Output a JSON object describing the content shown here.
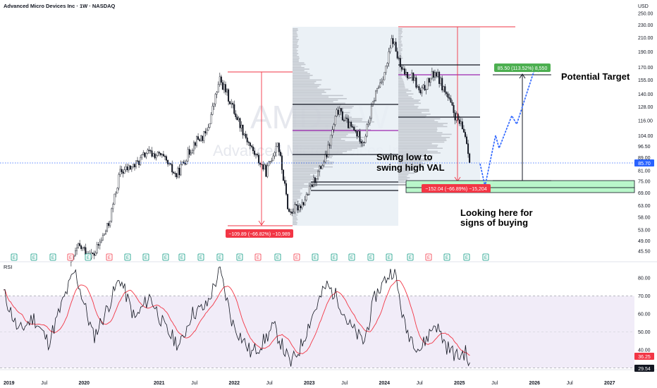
{
  "header": {
    "title": "Advanced Micro Devices Inc · 1W · NASDAQ",
    "currency": "USD",
    "watermark_ticker": "AMD, 1W",
    "watermark_name": "Advanced Micro Devices Inc"
  },
  "chart_data": [
    {
      "type": "candlestick",
      "title": "Advanced Micro Devices Inc · 1W · NASDAQ",
      "y_unit": "USD",
      "y_scale": "log",
      "y_ticks": [
        "250.00",
        "230.00",
        "210.00",
        "190.00",
        "170.00",
        "155.00",
        "140.00",
        "128.00",
        "116.00",
        "104.00",
        "96.50",
        "89.00",
        "81.00",
        "75.00",
        "69.00",
        "63.00",
        "58.00",
        "53.00",
        "49.00",
        "45.50"
      ],
      "x_ticks": [
        "2019",
        "Jul",
        "2020",
        "2021",
        "Jul",
        "2022",
        "Jul",
        "2023",
        "Jul",
        "2024",
        "Jul",
        "2025",
        "Jul",
        "2026",
        "Jul",
        "2027"
      ],
      "x_range": [
        2019.0,
        2027.3
      ],
      "approx_weekly_close_path": [
        {
          "t": 2019.9,
          "p": 42
        },
        {
          "t": 2020.0,
          "p": 47
        },
        {
          "t": 2020.2,
          "p": 44
        },
        {
          "t": 2020.4,
          "p": 55
        },
        {
          "t": 2020.55,
          "p": 80
        },
        {
          "t": 2020.75,
          "p": 84
        },
        {
          "t": 2020.9,
          "p": 92
        },
        {
          "t": 2021.1,
          "p": 90
        },
        {
          "t": 2021.3,
          "p": 78
        },
        {
          "t": 2021.55,
          "p": 100
        },
        {
          "t": 2021.7,
          "p": 105
        },
        {
          "t": 2021.88,
          "p": 155
        },
        {
          "t": 2021.95,
          "p": 145
        },
        {
          "t": 2022.1,
          "p": 120
        },
        {
          "t": 2022.3,
          "p": 95
        },
        {
          "t": 2022.5,
          "p": 80
        },
        {
          "t": 2022.65,
          "p": 100
        },
        {
          "t": 2022.8,
          "p": 60
        },
        {
          "t": 2022.9,
          "p": 62
        },
        {
          "t": 2023.0,
          "p": 65
        },
        {
          "t": 2023.3,
          "p": 90
        },
        {
          "t": 2023.45,
          "p": 125
        },
        {
          "t": 2023.6,
          "p": 112
        },
        {
          "t": 2023.8,
          "p": 100
        },
        {
          "t": 2023.95,
          "p": 140
        },
        {
          "t": 2024.1,
          "p": 170
        },
        {
          "t": 2024.18,
          "p": 210
        },
        {
          "t": 2024.3,
          "p": 165
        },
        {
          "t": 2024.45,
          "p": 160
        },
        {
          "t": 2024.55,
          "p": 140
        },
        {
          "t": 2024.75,
          "p": 165
        },
        {
          "t": 2024.9,
          "p": 140
        },
        {
          "t": 2025.0,
          "p": 122
        },
        {
          "t": 2025.15,
          "p": 105
        },
        {
          "t": 2025.22,
          "p": 85.7
        }
      ],
      "last_price": "85.70",
      "volume_profile": "visible range volume profile (grey horizontal histograms) over 2023 and 2024 ranges",
      "annotations": {
        "drawdown_2022": "−109.89 (−66.82%) −10,989",
        "drawdown_2024": "−152.04 (−66.89%) −15,204",
        "target": "85.50 (113.52%) 8,550",
        "text_potential_target": "Potential Target",
        "text_swing": [
          "Swing low to",
          "swing high VAL"
        ],
        "text_looking": [
          "Looking here for",
          "signs of buying"
        ]
      },
      "earnings_markers": [
        "E",
        "E",
        "E",
        "E",
        "E",
        "E",
        "E",
        "E",
        "E",
        "E",
        "E",
        "E",
        "E",
        "E",
        "E",
        "E",
        "E",
        "E",
        "E",
        "E",
        "E",
        "E",
        "E",
        "E",
        "E",
        "E",
        "E"
      ]
    },
    {
      "type": "line",
      "title": "RSI",
      "series": [
        {
          "name": "RSI",
          "color": "#131722"
        },
        {
          "name": "RSI-based MA",
          "color": "#f23645"
        }
      ],
      "ylim": [
        29,
        88
      ],
      "y_ticks": [
        "80.00",
        "70.00",
        "60.00",
        "50.00",
        "40.00"
      ],
      "band": [
        30,
        70
      ],
      "last_values": [
        "36.25",
        "29.54"
      ],
      "approx_rsi": [
        {
          "t": 2019.0,
          "v": 72
        },
        {
          "t": 2019.2,
          "v": 50
        },
        {
          "t": 2019.4,
          "v": 58
        },
        {
          "t": 2019.6,
          "v": 44
        },
        {
          "t": 2019.8,
          "v": 68
        },
        {
          "t": 2019.95,
          "v": 84
        },
        {
          "t": 2020.2,
          "v": 47
        },
        {
          "t": 2020.35,
          "v": 60
        },
        {
          "t": 2020.55,
          "v": 80
        },
        {
          "t": 2020.75,
          "v": 57
        },
        {
          "t": 2020.95,
          "v": 70
        },
        {
          "t": 2021.15,
          "v": 52
        },
        {
          "t": 2021.35,
          "v": 42
        },
        {
          "t": 2021.5,
          "v": 60
        },
        {
          "t": 2021.7,
          "v": 64
        },
        {
          "t": 2021.88,
          "v": 84
        },
        {
          "t": 2022.05,
          "v": 55
        },
        {
          "t": 2022.3,
          "v": 38
        },
        {
          "t": 2022.45,
          "v": 44
        },
        {
          "t": 2022.6,
          "v": 53
        },
        {
          "t": 2022.82,
          "v": 32
        },
        {
          "t": 2022.95,
          "v": 41
        },
        {
          "t": 2023.1,
          "v": 58
        },
        {
          "t": 2023.3,
          "v": 76
        },
        {
          "t": 2023.45,
          "v": 69
        },
        {
          "t": 2023.6,
          "v": 54
        },
        {
          "t": 2023.8,
          "v": 44
        },
        {
          "t": 2023.95,
          "v": 70
        },
        {
          "t": 2024.1,
          "v": 80
        },
        {
          "t": 2024.2,
          "v": 85
        },
        {
          "t": 2024.35,
          "v": 52
        },
        {
          "t": 2024.55,
          "v": 40
        },
        {
          "t": 2024.75,
          "v": 55
        },
        {
          "t": 2024.9,
          "v": 42
        },
        {
          "t": 2025.05,
          "v": 36
        },
        {
          "t": 2025.15,
          "v": 39
        },
        {
          "t": 2025.22,
          "v": 29.5
        }
      ]
    }
  ]
}
